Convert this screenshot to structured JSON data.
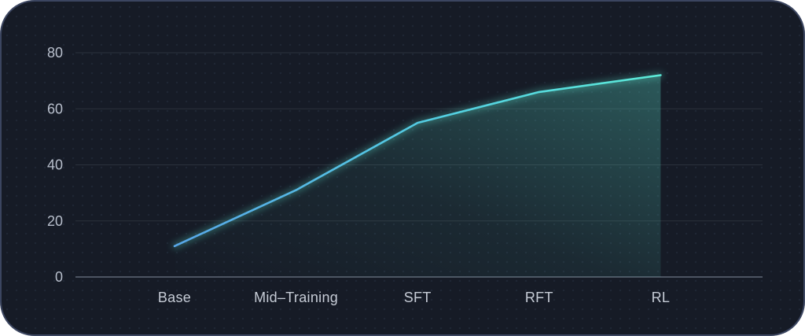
{
  "chart_data": {
    "type": "line",
    "title": "",
    "xlabel": "",
    "ylabel": "",
    "categories": [
      "Base",
      "Mid–Training",
      "SFT",
      "RFT",
      "RL"
    ],
    "values": [
      11,
      31,
      55,
      66,
      72
    ],
    "yticks": [
      0,
      20,
      40,
      60,
      80
    ],
    "ylim": [
      0,
      80
    ],
    "grid": true,
    "legend_position": "none",
    "colors": {
      "line_gradient_start": "#58a6e8",
      "line_gradient_end": "#5cebd8",
      "area_fill": "#5eead4",
      "panel_background": "#161b26",
      "panel_border": "#60709a",
      "gridline": "#c8d2e1",
      "axis_line": "#aab4c4",
      "tick_label": "#b8bfcc",
      "category_label": "#c6ccd6"
    }
  }
}
